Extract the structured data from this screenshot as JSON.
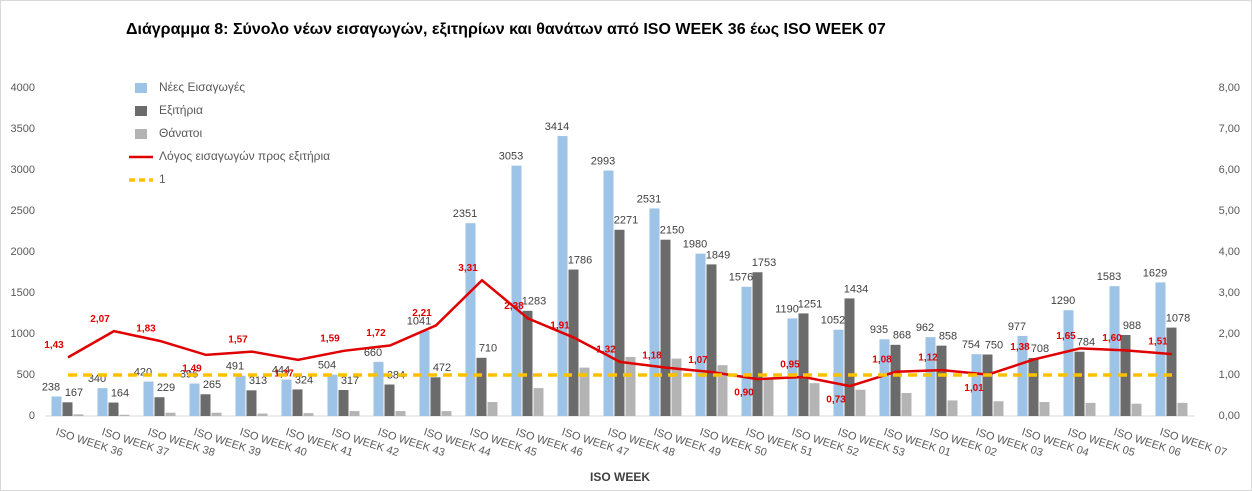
{
  "chart_data": {
    "type": "bar",
    "title": "Διάγραμμα 8: Σύνολο νέων εισαγωγών, εξιτηρίων και θανάτων από ISO WEEK 36 έως ISO WEEK 07",
    "x_label": "ISO WEEK",
    "categories": [
      "ISO WEEK 36",
      "ISO WEEK 37",
      "ISO WEEK 38",
      "ISO WEEK 39",
      "ISO WEEK 40",
      "ISO WEEK 41",
      "ISO WEEK 42",
      "ISO WEEK 43",
      "ISO WEEK 44",
      "ISO WEEK 45",
      "ISO WEEK 46",
      "ISO WEEK 47",
      "ISO WEEK 48",
      "ISO WEEK 49",
      "ISO WEEK 50",
      "ISO WEEK 51",
      "ISO WEEK 52",
      "ISO WEEK 53",
      "ISO WEEK 01",
      "ISO WEEK 02",
      "ISO WEEK 03",
      "ISO WEEK 04",
      "ISO WEEK 05",
      "ISO WEEK 06",
      "ISO WEEK 07"
    ],
    "series": [
      {
        "name": "Νέες Εισαγωγές",
        "type": "bar",
        "color": "#9dc3e6",
        "data_labels": true,
        "values": [
          238,
          340,
          420,
          396,
          491,
          444,
          504,
          660,
          1041,
          2351,
          3053,
          3414,
          2993,
          2531,
          1980,
          1576,
          1190,
          1052,
          935,
          962,
          754,
          977,
          1290,
          1583,
          1629
        ]
      },
      {
        "name": "Εξιτήρια",
        "type": "bar",
        "color": "#6b6b6b",
        "data_labels": true,
        "values": [
          167,
          164,
          229,
          265,
          313,
          324,
          317,
          384,
          472,
          710,
          1283,
          1786,
          2271,
          2150,
          1849,
          1753,
          1251,
          1434,
          868,
          858,
          750,
          708,
          784,
          988,
          1078
        ]
      },
      {
        "name": "Θάνατοι",
        "type": "bar",
        "color": "#b4b4b4",
        "data_labels": false,
        "values": [
          20,
          15,
          40,
          40,
          30,
          35,
          60,
          60,
          60,
          170,
          340,
          590,
          720,
          700,
          620,
          470,
          400,
          320,
          280,
          190,
          180,
          170,
          160,
          150,
          160
        ]
      },
      {
        "name": "Λόγος εισαγωγών προς εξιτήρια",
        "type": "line",
        "axis": "y2",
        "color": "#e00000",
        "data_labels": true,
        "values": [
          1.43,
          2.07,
          1.83,
          1.49,
          1.57,
          1.37,
          1.59,
          1.72,
          2.21,
          3.31,
          2.38,
          1.91,
          1.32,
          1.18,
          1.07,
          0.9,
          0.95,
          0.73,
          1.08,
          1.12,
          1.01,
          1.38,
          1.65,
          1.6,
          1.51
        ],
        "value_labels": [
          "1,43",
          "2,07",
          "1,83",
          "1,49",
          "1,57",
          "1,37",
          "1,59",
          "1,72",
          "2,21",
          "3,31",
          "2,38",
          "1,91",
          "1,32",
          "1,18",
          "1,07",
          "0,90",
          "0,95",
          "0,73",
          "1,08",
          "1,12",
          "1,01",
          "1,38",
          "1,65",
          "1,60",
          "1,51"
        ]
      },
      {
        "name": "1",
        "type": "line",
        "axis": "y2",
        "color": "#ffc000",
        "dashed": true,
        "data_labels": false,
        "values": [
          1,
          1,
          1,
          1,
          1,
          1,
          1,
          1,
          1,
          1,
          1,
          1,
          1,
          1,
          1,
          1,
          1,
          1,
          1,
          1,
          1,
          1,
          1,
          1,
          1
        ]
      }
    ],
    "ylim": [
      0,
      4000
    ],
    "yticks": [
      0,
      500,
      1000,
      1500,
      2000,
      2500,
      3000,
      3500,
      4000
    ],
    "y2lim": [
      0,
      8
    ],
    "y2ticks": [
      {
        "value": 0,
        "label": "0,00"
      },
      {
        "value": 1,
        "label": "1,00"
      },
      {
        "value": 2,
        "label": "2,00"
      },
      {
        "value": 3,
        "label": "3,00"
      },
      {
        "value": 4,
        "label": "4,00"
      },
      {
        "value": 5,
        "label": "5,00"
      },
      {
        "value": 6,
        "label": "6,00"
      },
      {
        "value": 7,
        "label": "7,00"
      },
      {
        "value": 8,
        "label": "8,00"
      }
    ],
    "grid": false,
    "legend": "top-left"
  }
}
